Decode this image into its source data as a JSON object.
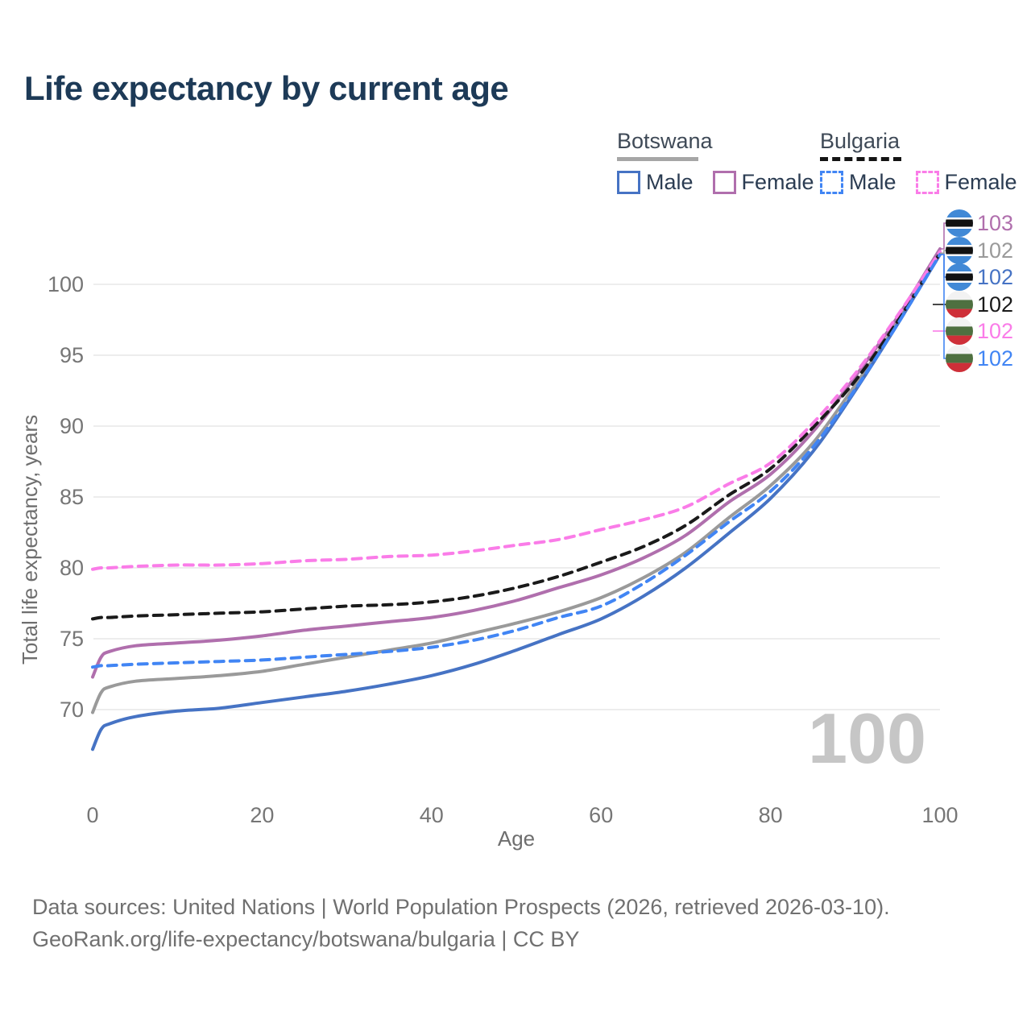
{
  "title": "Life expectancy by current age",
  "age_counter": "100",
  "legend": {
    "groups": [
      {
        "country": "Botswana",
        "line_style": "solid",
        "underline_color": "#a6a6a6",
        "items": [
          {
            "label": "Male",
            "color": "#4673c4",
            "dashed": false
          },
          {
            "label": "Female",
            "color": "#b06fad",
            "dashed": false
          }
        ]
      },
      {
        "country": "Bulgaria",
        "line_style": "dashed",
        "underline_color": "#141414",
        "items": [
          {
            "label": "Male",
            "color": "#4185f4",
            "dashed": true
          },
          {
            "label": "Female",
            "color": "#fa7ce8",
            "dashed": true
          }
        ]
      }
    ]
  },
  "chart_data": {
    "type": "line",
    "title": "Life expectancy by current age",
    "xlabel": "Age",
    "ylabel": "Total life expectancy, years",
    "x_ticks": [
      0,
      20,
      40,
      60,
      80,
      100
    ],
    "y_ticks": [
      70,
      75,
      80,
      85,
      90,
      95,
      100
    ],
    "xlim": [
      0,
      100
    ],
    "ylim": [
      66,
      104
    ],
    "grid": "horizontal-only",
    "legend_position": "top-right",
    "ages": [
      0,
      1,
      2,
      5,
      10,
      15,
      20,
      25,
      30,
      35,
      40,
      45,
      50,
      55,
      60,
      65,
      70,
      75,
      80,
      85,
      90,
      95,
      100
    ],
    "series": [
      {
        "id": "botswana-female",
        "country": "Botswana",
        "sex": "Female",
        "color": "#b06fad",
        "dashed": false,
        "flag": "botswana",
        "end_label": "103",
        "values": [
          72.3,
          73.7,
          74.1,
          74.5,
          74.7,
          74.9,
          75.2,
          75.6,
          75.9,
          76.2,
          76.5,
          77.0,
          77.7,
          78.6,
          79.5,
          80.7,
          82.3,
          84.6,
          86.6,
          89.6,
          93.5,
          97.7,
          102.5
        ]
      },
      {
        "id": "botswana-all",
        "country": "Botswana",
        "sex": "Both sexes",
        "color": "#9a9a9a",
        "dashed": false,
        "flag": "botswana",
        "end_label": "102",
        "values": [
          69.8,
          71.2,
          71.6,
          72.0,
          72.2,
          72.4,
          72.7,
          73.2,
          73.7,
          74.2,
          74.7,
          75.4,
          76.1,
          76.9,
          77.9,
          79.3,
          81.1,
          83.5,
          85.8,
          88.8,
          92.9,
          97.3,
          102.2
        ]
      },
      {
        "id": "botswana-male",
        "country": "Botswana",
        "sex": "Male",
        "color": "#4673c4",
        "dashed": false,
        "flag": "botswana",
        "end_label": "102",
        "values": [
          67.2,
          68.6,
          69.0,
          69.5,
          69.9,
          70.1,
          70.5,
          70.9,
          71.3,
          71.8,
          72.4,
          73.2,
          74.2,
          75.3,
          76.4,
          78.0,
          80.0,
          82.4,
          84.9,
          88.2,
          92.5,
          97.2,
          102.1
        ]
      },
      {
        "id": "bulgaria-all",
        "country": "Bulgaria",
        "sex": "Both sexes",
        "color": "#1a1a1a",
        "dashed": true,
        "flag": "bulgaria",
        "end_label": "102",
        "values": [
          76.4,
          76.5,
          76.5,
          76.6,
          76.7,
          76.8,
          76.9,
          77.1,
          77.3,
          77.4,
          77.6,
          78.0,
          78.6,
          79.4,
          80.4,
          81.5,
          83.0,
          85.1,
          87.0,
          89.9,
          93.2,
          97.4,
          102.2
        ]
      },
      {
        "id": "bulgaria-female",
        "country": "Bulgaria",
        "sex": "Female",
        "color": "#fa7ce8",
        "dashed": true,
        "flag": "bulgaria",
        "end_label": "102",
        "values": [
          79.9,
          80.0,
          80.0,
          80.1,
          80.2,
          80.2,
          80.3,
          80.5,
          80.6,
          80.8,
          80.9,
          81.2,
          81.6,
          82.0,
          82.7,
          83.4,
          84.3,
          85.9,
          87.4,
          90.2,
          93.7,
          97.8,
          102.3
        ]
      },
      {
        "id": "bulgaria-male",
        "country": "Bulgaria",
        "sex": "Male",
        "color": "#4185f4",
        "dashed": true,
        "flag": "bulgaria",
        "end_label": "102",
        "values": [
          73.0,
          73.1,
          73.1,
          73.2,
          73.3,
          73.4,
          73.5,
          73.7,
          73.9,
          74.1,
          74.4,
          74.9,
          75.6,
          76.5,
          77.3,
          78.9,
          80.9,
          83.2,
          85.4,
          88.5,
          92.6,
          97.2,
          102.1
        ]
      }
    ],
    "flag_colors": {
      "botswana": {
        "field": "#4189d6",
        "band": "#111111",
        "band_edge": "#ffffff"
      },
      "bulgaria": {
        "top": "#f2f2f2",
        "middle": "#4e7040",
        "bottom": "#ce2f38"
      }
    }
  },
  "footer": {
    "line1": "Data sources: United Nations | World Population Prospects (2026, retrieved 2026-03-10).",
    "line2": "GeoRank.org/life-expectancy/botswana/bulgaria | CC BY"
  }
}
